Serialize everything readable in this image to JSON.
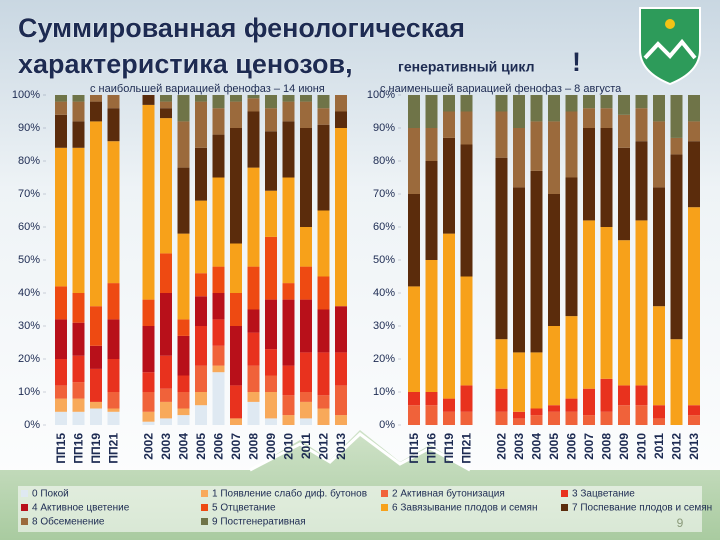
{
  "title_main": [
    "Суммированная фенологическая",
    "характеристика ценозов,"
  ],
  "title_tail": "генеративный цикл",
  "title_mark": "!",
  "page_number": "9",
  "legend": [
    {
      "name": "0 Покой",
      "color": "#dfe9f2"
    },
    {
      "name": "1 Появление слабо диф. бутонов",
      "color": "#f8a95a"
    },
    {
      "name": "2 Активная бутонизация",
      "color": "#f0623a"
    },
    {
      "name": "3 Зацветание",
      "color": "#e8321e"
    },
    {
      "name": "4 Активное цветение",
      "color": "#b8101a"
    },
    {
      "name": "5 Отцветание",
      "color": "#ee4a12"
    },
    {
      "name": "6 Завязывание плодов и семян",
      "color": "#f7a11a"
    },
    {
      "name": "7 Поспевание плодов и семян",
      "color": "#5b2c0c"
    },
    {
      "name": "8 Обсеменение",
      "color": "#9b6a3c"
    },
    {
      "name": "9 Постгенеративная",
      "color": "#6f7448"
    }
  ],
  "chart_data": [
    {
      "type": "bar",
      "stacked": true,
      "subtitle": "с наибольшей вариацией фенофаз – 14 июня",
      "categories": [
        "ПП15",
        "ПП16",
        "ПП19",
        "ПП21",
        null,
        "2002",
        "2003",
        "2004",
        "2005",
        "2006",
        "2007",
        "2008",
        "2009",
        "2010",
        "2011",
        "2012",
        "2013"
      ],
      "ylim": [
        0,
        100
      ],
      "yticks": [
        {
          "value": 0,
          "label": "0%"
        },
        {
          "value": 10,
          "label": "10%"
        },
        {
          "value": 20,
          "label": "20%"
        },
        {
          "value": 30,
          "label": "30%"
        },
        {
          "value": 40,
          "label": "40%"
        },
        {
          "value": 50,
          "label": "50%"
        },
        {
          "value": 60,
          "label": "60%"
        },
        {
          "value": 70,
          "label": "70%"
        },
        {
          "value": 80,
          "label": "80%"
        },
        {
          "value": 90,
          "label": "90%"
        },
        {
          "value": 100,
          "label": "100%"
        }
      ],
      "series": [
        {
          "values": [
            4,
            4,
            5,
            4,
            null,
            1,
            2,
            3,
            6,
            16,
            0,
            7,
            2,
            0,
            2,
            0,
            0
          ]
        },
        {
          "values": [
            4,
            4,
            2,
            1,
            null,
            3,
            5,
            2,
            4,
            2,
            2,
            3,
            8,
            3,
            5,
            5,
            3
          ]
        },
        {
          "values": [
            4,
            5,
            0,
            5,
            null,
            6,
            4,
            5,
            8,
            6,
            0,
            8,
            5,
            6,
            3,
            4,
            9
          ]
        },
        {
          "values": [
            8,
            8,
            10,
            10,
            null,
            6,
            10,
            5,
            12,
            8,
            10,
            10,
            8,
            9,
            12,
            13,
            10
          ]
        },
        {
          "values": [
            12,
            10,
            7,
            12,
            null,
            14,
            19,
            12,
            9,
            8,
            18,
            7,
            15,
            20,
            16,
            13,
            14
          ]
        },
        {
          "values": [
            10,
            9,
            12,
            11,
            null,
            8,
            12,
            5,
            7,
            8,
            10,
            13,
            19,
            5,
            10,
            10,
            0
          ]
        },
        {
          "values": [
            42,
            44,
            56,
            43,
            null,
            59,
            41,
            26,
            22,
            27,
            15,
            30,
            14,
            32,
            12,
            20,
            54
          ]
        },
        {
          "values": [
            10,
            8,
            6,
            10,
            null,
            3,
            3,
            20,
            16,
            13,
            35,
            17,
            18,
            17,
            30,
            26,
            5
          ]
        },
        {
          "values": [
            4,
            6,
            2,
            4,
            null,
            0,
            2,
            14,
            14,
            8,
            8,
            4,
            7,
            6,
            8,
            5,
            5
          ]
        },
        {
          "values": [
            2,
            2,
            0,
            0,
            null,
            0,
            2,
            8,
            2,
            4,
            2,
            1,
            4,
            2,
            2,
            4,
            0
          ]
        }
      ]
    },
    {
      "type": "bar",
      "stacked": true,
      "subtitle": "с наименьшей вариацией фенофаз – 8 августа",
      "categories": [
        "ПП15",
        "ПП16",
        "ПП19",
        "ПП21",
        null,
        "2002",
        "2003",
        "2004",
        "2005",
        "2006",
        "2007",
        "2008",
        "2009",
        "2010",
        "2011",
        "2012",
        "2013"
      ],
      "ylim": [
        0,
        100
      ],
      "yticks": [
        {
          "value": 0,
          "label": "0%"
        },
        {
          "value": 10,
          "label": "10%"
        },
        {
          "value": 20,
          "label": "20%"
        },
        {
          "value": 30,
          "label": "30%"
        },
        {
          "value": 40,
          "label": "40%"
        },
        {
          "value": 50,
          "label": "50%"
        },
        {
          "value": 60,
          "label": "60%"
        },
        {
          "value": 70,
          "label": "70%"
        },
        {
          "value": 80,
          "label": "80%"
        },
        {
          "value": 90,
          "label": "90%"
        },
        {
          "value": 100,
          "label": "100%"
        }
      ],
      "series": [
        {
          "values": [
            0,
            0,
            0,
            0,
            null,
            0,
            0,
            0,
            0,
            0,
            0,
            0,
            0,
            0,
            0,
            0,
            0
          ]
        },
        {
          "values": [
            0,
            0,
            0,
            0,
            null,
            0,
            0,
            0,
            0,
            0,
            0,
            0,
            0,
            0,
            0,
            0,
            0
          ]
        },
        {
          "values": [
            6,
            6,
            4,
            4,
            null,
            4,
            2,
            3,
            4,
            4,
            3,
            4,
            6,
            6,
            2,
            0,
            3
          ]
        },
        {
          "values": [
            4,
            4,
            4,
            8,
            null,
            7,
            2,
            2,
            2,
            4,
            8,
            10,
            6,
            6,
            4,
            0,
            3
          ]
        },
        {
          "values": [
            0,
            0,
            0,
            0,
            null,
            0,
            0,
            0,
            0,
            0,
            0,
            0,
            0,
            0,
            0,
            0,
            0
          ]
        },
        {
          "values": [
            0,
            0,
            0,
            0,
            null,
            0,
            0,
            0,
            0,
            0,
            0,
            0,
            0,
            0,
            0,
            0,
            0
          ]
        },
        {
          "values": [
            32,
            40,
            50,
            33,
            null,
            15,
            18,
            17,
            24,
            25,
            51,
            46,
            44,
            50,
            30,
            26,
            60
          ]
        },
        {
          "values": [
            28,
            30,
            29,
            40,
            null,
            55,
            50,
            55,
            40,
            42,
            28,
            30,
            28,
            24,
            36,
            56,
            20
          ]
        },
        {
          "values": [
            20,
            10,
            8,
            10,
            null,
            14,
            18,
            15,
            22,
            20,
            6,
            6,
            10,
            10,
            20,
            5,
            6
          ]
        },
        {
          "values": [
            10,
            10,
            5,
            5,
            null,
            5,
            10,
            8,
            8,
            5,
            4,
            4,
            6,
            4,
            8,
            13,
            8
          ]
        }
      ]
    }
  ]
}
